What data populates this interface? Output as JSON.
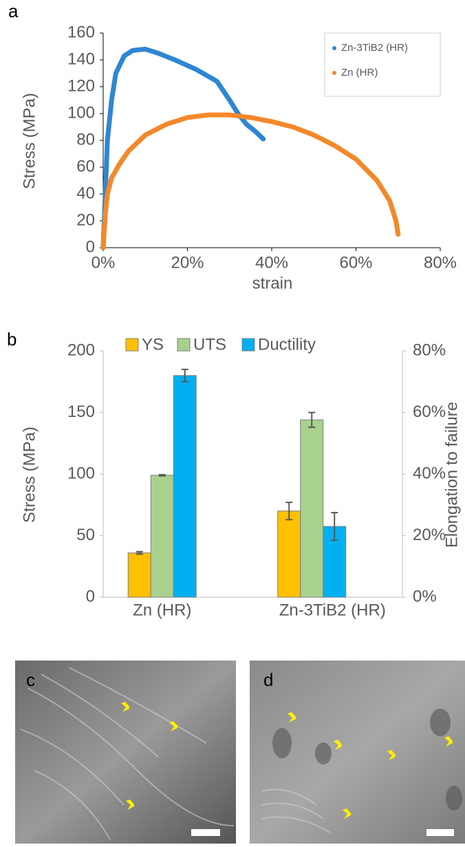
{
  "chart_data": [
    {
      "type": "line",
      "panel": "a",
      "xlabel": "strain",
      "ylabel": "Stress (MPa)",
      "xlim": [
        0,
        80
      ],
      "xticks": [
        {
          "value": 0,
          "label": "0%"
        },
        {
          "value": 20,
          "label": "20%"
        },
        {
          "value": 40,
          "label": "40%"
        },
        {
          "value": 60,
          "label": "60%"
        },
        {
          "value": 80,
          "label": "80%"
        }
      ],
      "ylim": [
        0,
        160
      ],
      "yticks": [
        0,
        20,
        40,
        60,
        80,
        100,
        120,
        140,
        160
      ],
      "legend": "upper right",
      "series": [
        {
          "name": "Zn-3TiB2 (HR)",
          "color": "#2e86d4",
          "x": [
            0,
            0.5,
            1,
            2,
            3,
            5,
            7,
            10,
            13,
            17,
            22,
            27,
            30,
            32,
            34,
            36,
            38
          ],
          "values": [
            0,
            40,
            80,
            110,
            130,
            143,
            147,
            148,
            145,
            140,
            133,
            124,
            110,
            100,
            92,
            87,
            81
          ]
        },
        {
          "name": "Zn (HR)",
          "color": "#f4882a",
          "x": [
            0,
            0.5,
            1,
            2,
            4,
            6,
            10,
            15,
            20,
            25,
            30,
            35,
            40,
            45,
            50,
            55,
            60,
            65,
            68,
            69.5,
            70
          ],
          "values": [
            0,
            25,
            40,
            52,
            63,
            72,
            84,
            92,
            97,
            99,
            99,
            97,
            94,
            90,
            84,
            76,
            66,
            50,
            35,
            20,
            10
          ]
        }
      ]
    },
    {
      "type": "bar",
      "panel": "b",
      "ylabel": "Stress (MPa)",
      "y2label": "Elongation to failure",
      "categories": [
        "Zn (HR)",
        "Zn-3TiB2 (HR)"
      ],
      "ylim": [
        0,
        200
      ],
      "yticks": [
        0,
        50,
        100,
        150,
        200
      ],
      "y2lim": [
        0,
        80
      ],
      "y2ticks": [
        {
          "value": 0,
          "label": "0%"
        },
        {
          "value": 20,
          "label": "20%"
        },
        {
          "value": 40,
          "label": "40%"
        },
        {
          "value": 60,
          "label": "60%"
        },
        {
          "value": 80,
          "label": "80%"
        }
      ],
      "legend": "top",
      "series": [
        {
          "name": "YS",
          "color": "#ffc000",
          "values": [
            36,
            70
          ],
          "errors": [
            1,
            7
          ]
        },
        {
          "name": "UTS",
          "color": "#a9d18e",
          "values": [
            99,
            144
          ],
          "errors": [
            0.5,
            6
          ]
        },
        {
          "name": "Ductility",
          "color": "#00b0f0",
          "axis": "y2",
          "values": [
            72,
            23
          ],
          "errors": [
            2,
            4.5
          ]
        }
      ]
    }
  ],
  "images": [
    {
      "panel": "c"
    },
    {
      "panel": "d"
    }
  ]
}
